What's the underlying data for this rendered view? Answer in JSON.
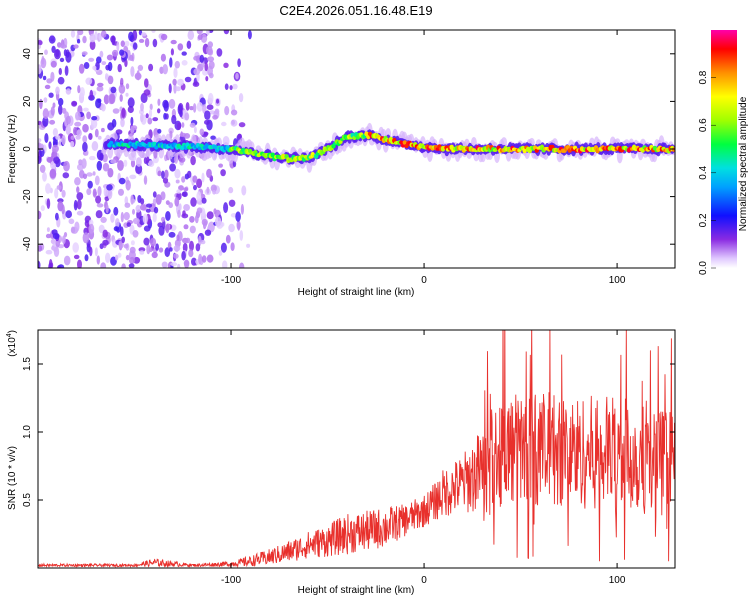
{
  "title": "C2E4.2026.051.16.48.E19",
  "chart_data": [
    {
      "type": "heatmap",
      "xlabel": "Height of straight line (km)",
      "ylabel": "Frequency (Hz)",
      "xlim": [
        -200,
        130
      ],
      "ylim": [
        -50,
        50
      ],
      "xticks": [
        -100,
        0,
        100
      ],
      "yticks": [
        -40,
        -20,
        0,
        20,
        40
      ],
      "colorbar": {
        "label": "Normalized spectral amplitude",
        "range": [
          0,
          1
        ],
        "ticks": [
          "0.0",
          "0.2",
          "0.4",
          "0.6",
          "0.8"
        ]
      },
      "ridge": {
        "x": [
          -160,
          -140,
          -120,
          -100,
          -80,
          -70,
          -60,
          -50,
          -40,
          -30,
          -20,
          -10,
          0,
          10,
          20,
          40,
          60,
          80,
          100,
          130
        ],
        "freq": [
          2,
          1.5,
          1,
          0,
          -3,
          -4,
          -4,
          0,
          5,
          6,
          4,
          2,
          1,
          0,
          0,
          0,
          0,
          0,
          0,
          0
        ]
      }
    },
    {
      "type": "line",
      "xlabel": "Height of straight line (km)",
      "ylabel": "SNR (10 * v/v)",
      "scale_label": "(x10",
      "scale_exp": "4",
      "scale_close": ")",
      "xlim": [
        -200,
        130
      ],
      "ylim": [
        0,
        1.75
      ],
      "xticks": [
        -100,
        0,
        100
      ],
      "yticks": [
        "0.5",
        "1.0",
        "1.5"
      ],
      "envelope": {
        "x": [
          -200,
          -150,
          -140,
          -120,
          -100,
          -90,
          -80,
          -70,
          -60,
          -50,
          -40,
          -30,
          -20,
          -10,
          0,
          5,
          10,
          20,
          30,
          35,
          40,
          60,
          80,
          100,
          130
        ],
        "mean": [
          0.02,
          0.02,
          0.04,
          0.02,
          0.03,
          0.05,
          0.08,
          0.12,
          0.17,
          0.2,
          0.25,
          0.27,
          0.3,
          0.35,
          0.42,
          0.48,
          0.55,
          0.62,
          0.72,
          0.82,
          0.87,
          0.88,
          0.85,
          0.85,
          0.75
        ],
        "spread": [
          0.01,
          0.01,
          0.03,
          0.01,
          0.02,
          0.04,
          0.06,
          0.08,
          0.1,
          0.12,
          0.15,
          0.15,
          0.15,
          0.12,
          0.12,
          0.14,
          0.18,
          0.22,
          0.32,
          0.38,
          0.42,
          0.42,
          0.42,
          0.42,
          0.4
        ]
      },
      "series_color": "#e8302c"
    }
  ]
}
